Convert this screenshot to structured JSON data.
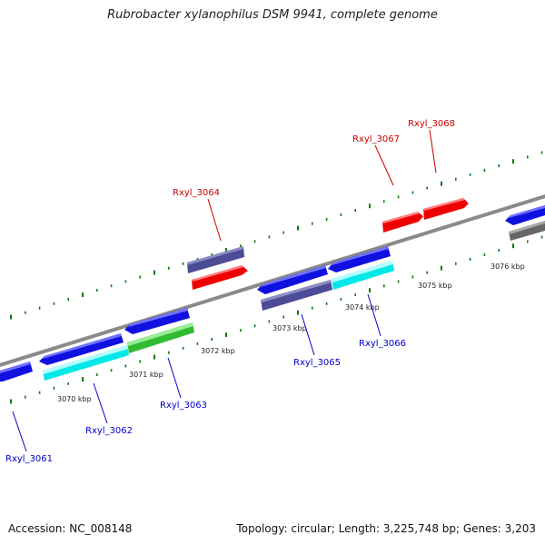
{
  "title": "Rubrobacter xylanophilus DSM 9941, complete genome",
  "footer": {
    "accession": "Accession: NC_008148",
    "summary": "Topology: circular; Length: 3,225,748 bp; Genes: 3,203"
  },
  "colors": {
    "backbone": "#8a8a8a",
    "tick": "#0f7a0f",
    "label_forward": "#cc0000",
    "label_reverse": "#0000cc",
    "gene_red": "#ee0000",
    "gene_blue": "#1010e0",
    "gene_cyan": "#00e8e8",
    "gene_green": "#33bb33",
    "gene_slate": "#4b4b96",
    "gene_gray": "#666666"
  },
  "scale": {
    "labels": [
      "3070 kbp",
      "3071 kbp",
      "3072 kbp",
      "3073 kbp",
      "3074 kbp",
      "3075 kbp",
      "3076 kbp"
    ]
  },
  "genes": [
    {
      "name": "Rxyl_3061",
      "color": "blue"
    },
    {
      "name": "Rxyl_3062",
      "color": "cyan"
    },
    {
      "name": "Rxyl_3063",
      "color": "green"
    },
    {
      "name": "Rxyl_3064",
      "color": "red"
    },
    {
      "name": "Rxyl_3065",
      "color": "slate"
    },
    {
      "name": "Rxyl_3066",
      "color": "cyan"
    },
    {
      "name": "Rxyl_3067",
      "color": "red"
    },
    {
      "name": "Rxyl_3068",
      "color": "red"
    }
  ]
}
